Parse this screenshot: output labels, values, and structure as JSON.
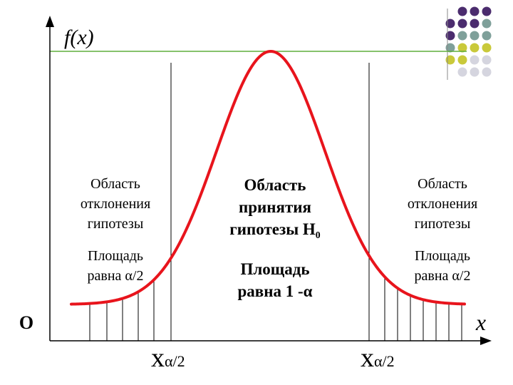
{
  "axis": {
    "y_label": "f(x)",
    "x_label": "x",
    "origin_label": "O"
  },
  "critical": {
    "base": "x",
    "sub": "α/2",
    "left": "xα/2",
    "right": "xα/2"
  },
  "regions": {
    "left": {
      "line1": "Область",
      "line2": "отклонения",
      "line3": "гипотезы",
      "area1": "Площадь",
      "area2": "равна α/2"
    },
    "center": {
      "line1": "Область",
      "line2": "принятия",
      "line3": "гипотезы H",
      "line3_sub": "0",
      "area1": "Площадь",
      "area2": "равна 1 -α"
    },
    "right": {
      "line1": "Область",
      "line2": "отклонения",
      "line3": "гипотезы",
      "area1": "Площадь",
      "area2": "равна α/2"
    }
  },
  "colors": {
    "curve": "#e8141c",
    "axes": "#000000",
    "peak_line": "#5fae3c",
    "dots_purple": "#4b2c6e",
    "dots_teal": "#7fa09a",
    "dots_olive": "#c9c93a",
    "dots_gray": "#d5d5df"
  }
}
